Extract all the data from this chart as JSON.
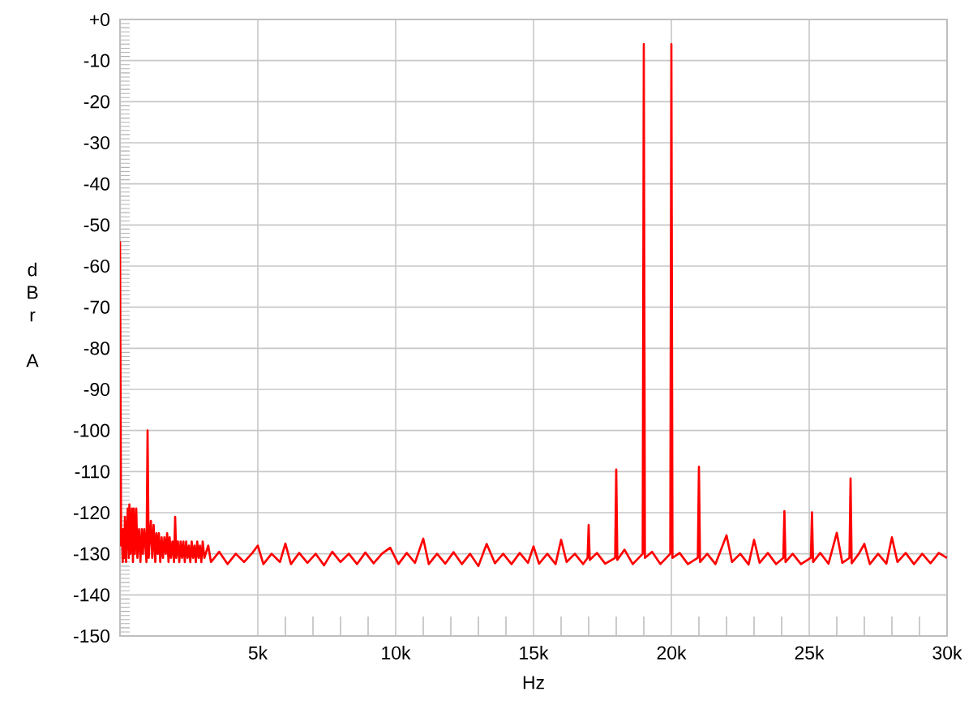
{
  "chart_data": {
    "type": "line",
    "xlabel": "Hz",
    "ylabel": "dBr A",
    "x": [
      0,
      40,
      60,
      100,
      120,
      150,
      180,
      220,
      280,
      320,
      340,
      380,
      430,
      470,
      500,
      540,
      590,
      630,
      690,
      740,
      790,
      830,
      880,
      960,
      1000,
      1040,
      1120,
      1170,
      1220,
      1280,
      1320,
      1370,
      1410,
      1460,
      1510,
      1560,
      1610,
      1660,
      1710,
      1760,
      1800,
      1850,
      1900,
      1960,
      2000,
      2040,
      2100,
      2150,
      2200,
      2250,
      2300,
      2350,
      2400,
      2450,
      2500,
      2550,
      2600,
      2650,
      2700,
      2750,
      2800,
      2850,
      2900,
      2950,
      3000,
      3060,
      3200,
      3300,
      3600,
      3900,
      4200,
      4500,
      4800,
      5000,
      5200,
      5500,
      5800,
      6000,
      6200,
      6500,
      6800,
      7100,
      7400,
      7700,
      8000,
      8300,
      8600,
      8900,
      9200,
      9500,
      9800,
      10100,
      10400,
      10700,
      11000,
      11200,
      11500,
      11800,
      12100,
      12400,
      12700,
      13000,
      13300,
      13600,
      13900,
      14200,
      14500,
      14800,
      15000,
      15200,
      15500,
      15800,
      16000,
      16200,
      16500,
      16800,
      16960,
      17000,
      17040,
      17300,
      17600,
      17960,
      18000,
      18040,
      18300,
      18600,
      18960,
      19000,
      19040,
      19300,
      19600,
      19960,
      20000,
      20040,
      20300,
      20600,
      20960,
      21000,
      21040,
      21300,
      21600,
      22000,
      22200,
      22500,
      22800,
      23000,
      23200,
      23500,
      23800,
      24060,
      24100,
      24140,
      24400,
      24700,
      25060,
      25100,
      25140,
      25400,
      25700,
      26000,
      26200,
      26460,
      26500,
      26540,
      26800,
      27000,
      27200,
      27500,
      27800,
      28000,
      28200,
      28500,
      28800,
      29100,
      29400,
      29700,
      30000
    ],
    "series": [
      {
        "color": "#ff0000",
        "values": [
          -54,
          -128,
          -124,
          -132,
          -124,
          -131,
          -121,
          -132,
          -119,
          -131,
          -118,
          -130,
          -119,
          -132,
          -119,
          -130,
          -119,
          -131,
          -124,
          -132,
          -124,
          -130,
          -124,
          -132,
          -100,
          -131,
          -122,
          -131,
          -123,
          -132,
          -125,
          -130,
          -125,
          -132,
          -126,
          -131,
          -126,
          -130,
          -125,
          -132,
          -126,
          -131,
          -127,
          -132,
          -121,
          -131,
          -127,
          -132,
          -127,
          -131,
          -127,
          -132,
          -127,
          -131,
          -128,
          -132,
          -127,
          -131,
          -128,
          -132,
          -127,
          -131,
          -128,
          -132,
          -127,
          -131,
          -128,
          -132,
          -129.5,
          -132.5,
          -130,
          -132,
          -129.8,
          -128,
          -132.5,
          -130,
          -132,
          -127.5,
          -132.5,
          -129.8,
          -132.2,
          -130,
          -132.8,
          -129.5,
          -132,
          -130,
          -132.5,
          -129.7,
          -132.3,
          -130,
          -128.5,
          -132.5,
          -129.8,
          -132.2,
          -126.3,
          -132.5,
          -130,
          -132.4,
          -129.6,
          -132.5,
          -130,
          -133,
          -127.6,
          -132.3,
          -130,
          -132.5,
          -129.8,
          -132.2,
          -128.2,
          -132.4,
          -130,
          -132.5,
          -126.6,
          -132,
          -130,
          -132.5,
          -131,
          -123,
          -131.5,
          -129.8,
          -132.4,
          -131,
          -109.5,
          -131.5,
          -129,
          -132.5,
          -130,
          -6,
          -131,
          -129.5,
          -132.5,
          -130,
          -6,
          -131,
          -129.8,
          -132.5,
          -131,
          -108.8,
          -132,
          -130,
          -132.5,
          -125.5,
          -132,
          -130,
          -132.6,
          -126.6,
          -132.2,
          -129.8,
          -132.5,
          -131,
          -119.6,
          -132,
          -130,
          -132.5,
          -131,
          -119.9,
          -132,
          -129.8,
          -132.4,
          -124.9,
          -132.2,
          -131,
          -111.7,
          -132.3,
          -130,
          -127.6,
          -132.5,
          -130,
          -132.4,
          -126,
          -132,
          -129.8,
          -132.5,
          -130,
          -132.3,
          -129.8,
          -131
        ]
      }
    ],
    "xlim": [
      0,
      30000
    ],
    "ylim": [
      -150,
      0
    ],
    "xticks": [
      {
        "value": 5000,
        "label": "5k"
      },
      {
        "value": 10000,
        "label": "10k"
      },
      {
        "value": 15000,
        "label": "15k"
      },
      {
        "value": 20000,
        "label": "20k"
      },
      {
        "value": 25000,
        "label": "25k"
      },
      {
        "value": 30000,
        "label": "30k"
      }
    ],
    "yticks": [
      {
        "value": 0,
        "label": "+0"
      },
      -10,
      -20,
      -30,
      -40,
      -50,
      -60,
      -70,
      -80,
      -90,
      -100,
      -110,
      -120,
      -130,
      -140,
      -150
    ],
    "grid": true
  }
}
